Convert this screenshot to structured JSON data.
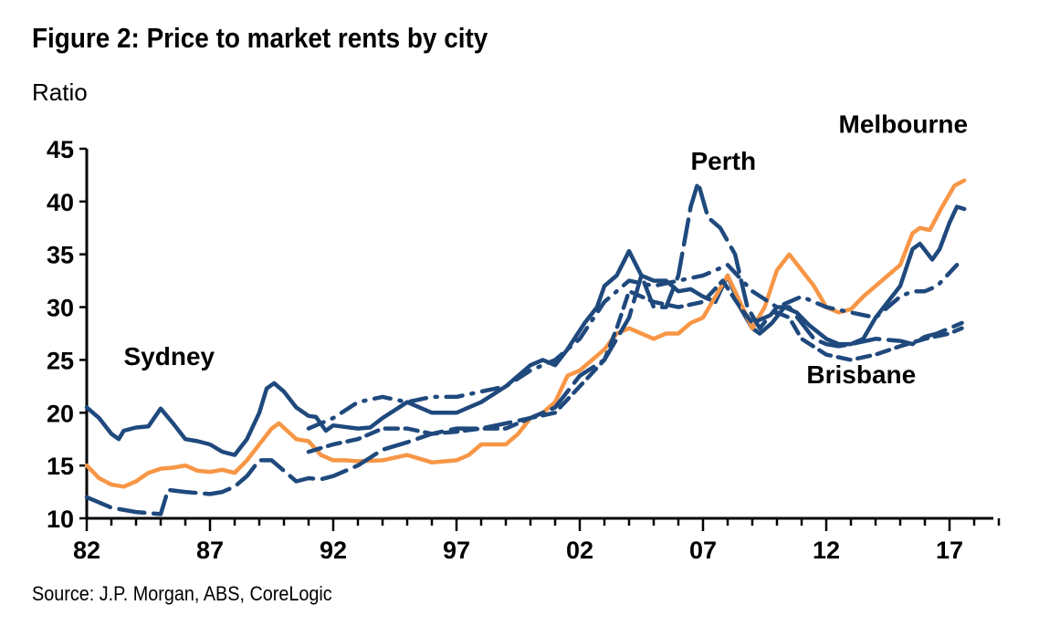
{
  "chart_data": {
    "type": "line",
    "title": "Figure 2: Price to market rents by city",
    "ylabel": "Ratio",
    "source": "Source: J.P. Morgan, ABS, CoreLogic",
    "xlim": [
      1982,
      2019
    ],
    "ylim": [
      10,
      45
    ],
    "yticks": [
      10,
      15,
      20,
      25,
      30,
      35,
      40,
      45
    ],
    "xtick_years": [
      1982,
      1987,
      1992,
      1997,
      2002,
      2007,
      2012,
      2017
    ],
    "xtick_labels": [
      "82",
      "87",
      "92",
      "97",
      "02",
      "07",
      "12",
      "17"
    ],
    "grid": false,
    "colors": {
      "navy": "#1f497d",
      "orange": "#f79646"
    },
    "annotations": [
      {
        "text": "Sydney",
        "x": 1983.5,
        "y": 24.5
      },
      {
        "text": "Perth",
        "x": 2006.5,
        "y": 43
      },
      {
        "text": "Melbourne",
        "x": 2012.5,
        "y": 46.5
      },
      {
        "text": "Brisbane",
        "x": 2011.2,
        "y": 22.8
      }
    ],
    "series": [
      {
        "name": "Sydney",
        "color": "#1f497d",
        "style": "solid",
        "x": [
          1982,
          1982.5,
          1983,
          1983.3,
          1983.5,
          1984,
          1984.5,
          1985,
          1985.5,
          1986,
          1986.5,
          1987,
          1987.5,
          1988,
          1988.5,
          1989,
          1989.3,
          1989.6,
          1990,
          1990.5,
          1991,
          1991.3,
          1991.7,
          1992,
          1993,
          1993.5,
          1994,
          1995,
          1996,
          1997,
          1998,
          1999,
          2000,
          2000.5,
          2001,
          2001.5,
          2002.2,
          2002.7,
          2003,
          2003.5,
          2004,
          2004.5,
          2005,
          2005.5,
          2006,
          2006.5,
          2007,
          2007.5,
          2008,
          2008.5,
          2009,
          2009.3,
          2009.8,
          2010.3,
          2010.8,
          2011.3,
          2012,
          2012.5,
          2013,
          2013.5,
          2014,
          2014.5,
          2015,
          2015.5,
          2015.8,
          2016.3,
          2016.6,
          2017,
          2017.3,
          2017.6
        ],
        "y": [
          20.5,
          19.5,
          18,
          17.5,
          18.3,
          18.6,
          18.7,
          20.4,
          19,
          17.5,
          17.3,
          17,
          16.3,
          16,
          17.5,
          20,
          22.3,
          22.8,
          22,
          20.5,
          19.7,
          19.6,
          18.3,
          18.8,
          18.5,
          18.6,
          19.5,
          21,
          20,
          20,
          21,
          22.5,
          24.5,
          25,
          24.5,
          26,
          28.5,
          30,
          32,
          33,
          35.3,
          33,
          32.5,
          32.5,
          31.5,
          31.7,
          31,
          30.5,
          33,
          30,
          28,
          27.5,
          28.5,
          30,
          29.5,
          28.3,
          27,
          26.5,
          26.5,
          27,
          29,
          30.5,
          32,
          35.5,
          36,
          34.5,
          35.5,
          38,
          39.5,
          39.3
        ]
      },
      {
        "name": "Melbourne",
        "color": "#f79646",
        "style": "solid",
        "x": [
          1982,
          1982.5,
          1983,
          1983.5,
          1984,
          1984.5,
          1985,
          1985.5,
          1986,
          1986.5,
          1987,
          1987.5,
          1988,
          1988.5,
          1989,
          1989.5,
          1989.8,
          1990.5,
          1991,
          1991.5,
          1992,
          1992.5,
          1993,
          1994,
          1995,
          1996,
          1997,
          1997.5,
          1998,
          1999,
          1999.5,
          2000,
          2000.5,
          2001,
          2001.5,
          2002,
          2002.5,
          2003,
          2003.5,
          2004,
          2004.5,
          2005,
          2005.5,
          2006,
          2006.5,
          2007,
          2007.5,
          2008,
          2008.5,
          2009,
          2009.5,
          2010,
          2010.5,
          2011,
          2011.5,
          2012,
          2012.5,
          2013,
          2013.5,
          2014,
          2014.5,
          2015,
          2015.5,
          2015.8,
          2016.2,
          2016.7,
          2017.2,
          2017.6
        ],
        "y": [
          15,
          13.8,
          13.2,
          13,
          13.5,
          14.3,
          14.7,
          14.8,
          15,
          14.5,
          14.4,
          14.6,
          14.3,
          15.5,
          17,
          18.5,
          19,
          17.5,
          17.3,
          16,
          15.5,
          15.5,
          15.4,
          15.5,
          16,
          15.3,
          15.5,
          16,
          17,
          17,
          18,
          19.5,
          20,
          21,
          23.5,
          24,
          25,
          26,
          27.5,
          28,
          27.5,
          27,
          27.5,
          27.5,
          28.5,
          29,
          31,
          33,
          30.5,
          28,
          30,
          33.5,
          35,
          33.5,
          32,
          30,
          29.5,
          29.8,
          31,
          32,
          33,
          34,
          37,
          37.5,
          37.3,
          39.5,
          41.5,
          42
        ]
      },
      {
        "name": "Perth",
        "color": "#1f497d",
        "style": "longdash",
        "x": [
          1982,
          1982.5,
          1983,
          1984,
          1985,
          1985.3,
          1986,
          1987,
          1987.5,
          1988,
          1988.5,
          1989,
          1989.5,
          1990,
          1990.5,
          1991,
          1991.5,
          1992,
          1993,
          1994,
          1995,
          1996,
          1997,
          1998,
          1999,
          2000,
          2001,
          2002,
          2003,
          2004,
          2004.5,
          2005,
          2005.5,
          2006,
          2006.5,
          2006.8,
          2007.2,
          2007.7,
          2008.3,
          2008.8,
          2009.3,
          2010,
          2010.5,
          2011,
          2011.5,
          2012,
          2012.5,
          2013,
          2014,
          2015,
          2015.5,
          2016,
          2016.5,
          2017,
          2017.5
        ],
        "y": [
          12,
          11.5,
          11,
          10.6,
          10.4,
          12.7,
          12.5,
          12.3,
          12.5,
          13,
          14,
          15.5,
          15.5,
          14.5,
          13.5,
          13.8,
          13.7,
          14,
          15,
          16.5,
          17.2,
          18,
          18.5,
          18.5,
          19,
          19.5,
          20.5,
          23.5,
          25,
          29,
          33,
          30,
          30,
          33,
          39.5,
          41.8,
          38.5,
          37.5,
          35,
          30,
          28,
          30,
          30,
          28.5,
          27,
          26.5,
          26.3,
          26.5,
          27,
          26.8,
          26.5,
          27.2,
          27.5,
          28,
          28.5
        ]
      },
      {
        "name": "Brisbane",
        "color": "#1f497d",
        "style": "dash",
        "x": [
          1991,
          1992,
          1993,
          1994,
          1995,
          1996,
          1997,
          1998,
          1999,
          2000,
          2001,
          2002,
          2003,
          2003.5,
          2004,
          2004.5,
          2005,
          2006,
          2007,
          2007.8,
          2008.5,
          2009,
          2010,
          2010.5,
          2011,
          2012,
          2013,
          2014,
          2015,
          2016,
          2017,
          2017.5
        ],
        "y": [
          16.3,
          17,
          17.5,
          18.5,
          18.5,
          18,
          18.2,
          18.5,
          18.5,
          19.5,
          20,
          22.5,
          25,
          28,
          31.5,
          31,
          30.5,
          30,
          30.5,
          32.5,
          30,
          28.5,
          29.5,
          29,
          27,
          25.5,
          25,
          25.5,
          26.3,
          27,
          27.5,
          28
        ]
      },
      {
        "color": "#1f497d",
        "style": "dashdot",
        "x": [
          1991,
          1992,
          1993,
          1994,
          1995,
          1996,
          1997,
          1998,
          1999,
          2000,
          2001,
          2002,
          2003,
          2004,
          2005,
          2006,
          2007,
          2008,
          2009,
          2010,
          2011,
          2012,
          2013,
          2014,
          2015,
          2015.5,
          2016,
          2016.5,
          2017.3
        ],
        "y": [
          18.5,
          19.5,
          21,
          21.5,
          21,
          21.5,
          21.5,
          22,
          22.5,
          24,
          25,
          27,
          30.5,
          32.5,
          32,
          32.5,
          33,
          34,
          31.5,
          30,
          31,
          30,
          29.5,
          29,
          31,
          31.5,
          31.5,
          32,
          34
        ]
      }
    ]
  }
}
